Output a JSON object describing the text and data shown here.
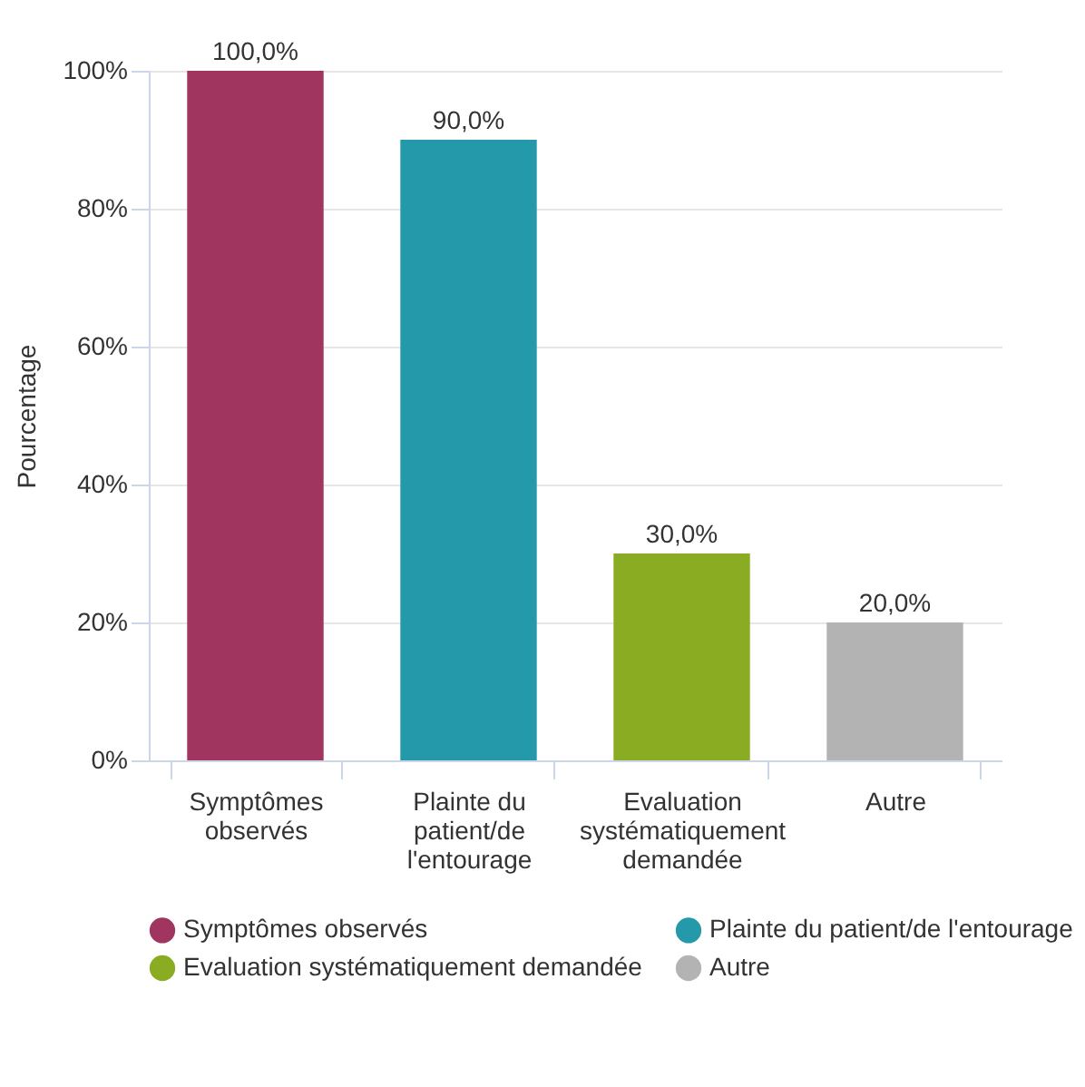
{
  "chart_data": {
    "type": "bar",
    "ylabel": "Pourcentage",
    "stacked": true,
    "categories": [
      "Symptômes observés",
      "Plainte du patient/de l'entourage",
      "Evaluation systématiquement demandée",
      "Autre"
    ],
    "series": [
      {
        "name": "Symptômes observés",
        "color": "#a0365f",
        "values": [
          100,
          null,
          null,
          null
        ],
        "value_labels": [
          "100,0%",
          null,
          null,
          null
        ]
      },
      {
        "name": "Plainte du patient/de l'entourage",
        "color": "#2399aa",
        "values": [
          null,
          90,
          null,
          null
        ],
        "value_labels": [
          null,
          "90,0%",
          null,
          null
        ]
      },
      {
        "name": "Evaluation systématiquement demandée",
        "color": "#8aac22",
        "values": [
          null,
          null,
          30,
          null
        ],
        "value_labels": [
          null,
          null,
          "30,0%",
          null
        ]
      },
      {
        "name": "Autre",
        "color": "#b3b3b3",
        "values": [
          null,
          null,
          null,
          20
        ],
        "value_labels": [
          null,
          null,
          null,
          "20,0%"
        ]
      }
    ],
    "ylim": [
      0,
      100
    ],
    "yticks": [
      {
        "value": 0,
        "label": "0%"
      },
      {
        "value": 20,
        "label": "20%"
      },
      {
        "value": 40,
        "label": "40%"
      },
      {
        "value": 60,
        "label": "60%"
      },
      {
        "value": 80,
        "label": "80%"
      },
      {
        "value": 100,
        "label": "100%"
      }
    ],
    "grid": "y",
    "legend": "bottom"
  }
}
